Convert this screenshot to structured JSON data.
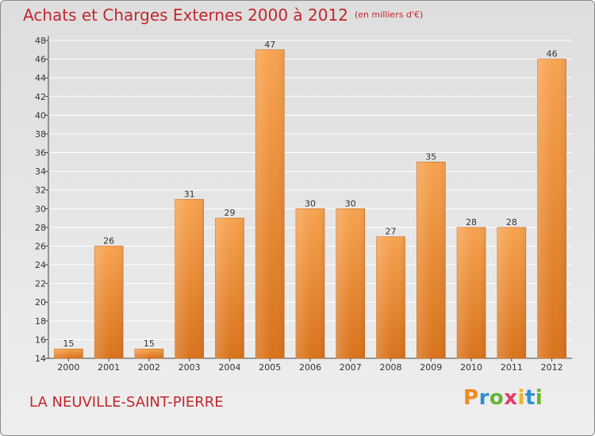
{
  "header": {
    "title": "Achats et Charges Externes 2000 à 2012",
    "unit": "(en milliers d'€)"
  },
  "footer": {
    "location": "LA NEUVILLE-SAINT-PIERRE",
    "logo_text": "Proxiti"
  },
  "colors": {
    "bar_top": "#f7a350",
    "bar_bottom": "#d9731c",
    "title": "#c1272d",
    "grid": "#ffffff"
  },
  "chart_data": {
    "type": "bar",
    "title": "Achats et Charges Externes 2000 à 2012",
    "subtitle": "(en milliers d'€)",
    "xlabel": "",
    "ylabel": "",
    "categories": [
      "2000",
      "2001",
      "2002",
      "2003",
      "2004",
      "2005",
      "2006",
      "2007",
      "2008",
      "2009",
      "2010",
      "2011",
      "2012"
    ],
    "values": [
      15,
      26,
      15,
      31,
      29,
      47,
      30,
      30,
      27,
      35,
      28,
      28,
      46
    ],
    "ylim": [
      14,
      48
    ],
    "yticks": [
      14,
      16,
      18,
      20,
      22,
      24,
      26,
      28,
      30,
      32,
      34,
      36,
      38,
      40,
      42,
      44,
      46,
      48
    ],
    "grid": true,
    "data_labels": true
  }
}
